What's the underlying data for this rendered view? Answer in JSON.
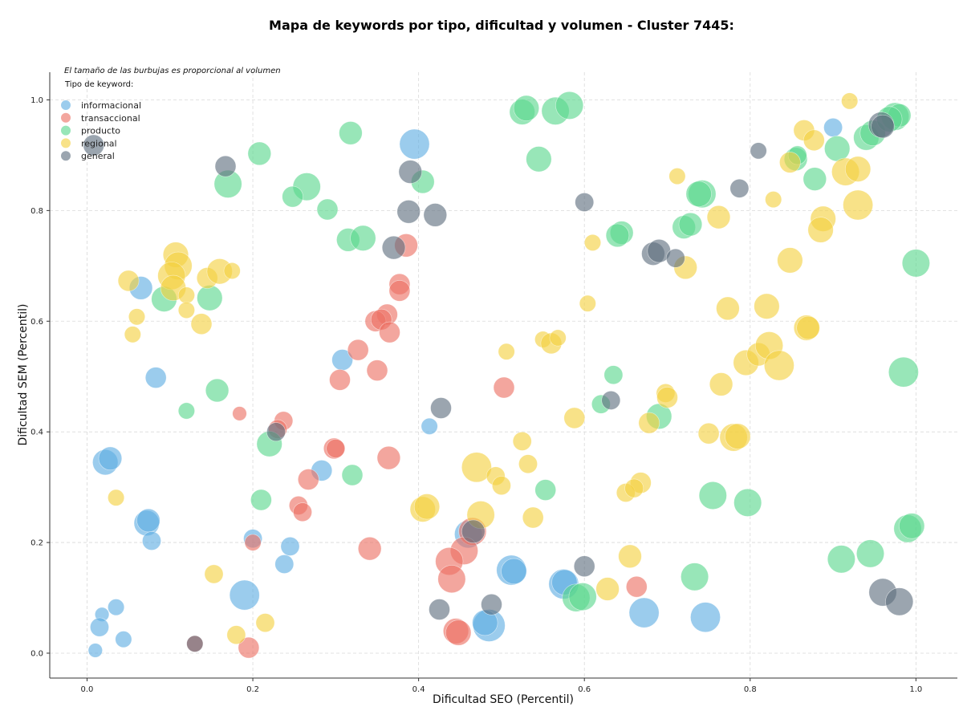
{
  "chart_data": {
    "type": "scatter",
    "title": "Mapa de keywords por tipo, dificultad y volumen - Cluster 7445:",
    "xlabel": "Dificultad SEO (Percentil)",
    "ylabel": "Dificultad SEM (Percentil)",
    "note": "El tamaño de las burbujas es proporcional al volumen",
    "legend_title": "Tipo de keyword:",
    "legend_placement": "top-left",
    "xlim": [
      -0.045,
      1.05
    ],
    "ylim": [
      -0.045,
      1.05
    ],
    "xticks": [
      "0.0",
      "0.2",
      "0.4",
      "0.6",
      "0.8",
      "1.0"
    ],
    "yticks": [
      "0.0",
      "0.2",
      "0.4",
      "0.6",
      "0.8",
      "1.0"
    ],
    "grid": true,
    "series": [
      {
        "name": "informacional",
        "color": "#5dade2",
        "points": [
          [
            0.395,
            0.92,
            0.9
          ],
          [
            0.9,
            0.95,
            0.4
          ],
          [
            0.065,
            0.66,
            0.6
          ],
          [
            0.083,
            0.498,
            0.5
          ],
          [
            0.308,
            0.53,
            0.5
          ],
          [
            0.413,
            0.41,
            0.3
          ],
          [
            0.022,
            0.345,
            0.7
          ],
          [
            0.028,
            0.352,
            0.6
          ],
          [
            0.283,
            0.33,
            0.5
          ],
          [
            0.072,
            0.235,
            0.7
          ],
          [
            0.074,
            0.24,
            0.6
          ],
          [
            0.078,
            0.203,
            0.4
          ],
          [
            0.2,
            0.207,
            0.4
          ],
          [
            0.245,
            0.193,
            0.4
          ],
          [
            0.238,
            0.161,
            0.4
          ],
          [
            0.19,
            0.105,
            0.9
          ],
          [
            0.035,
            0.083,
            0.3
          ],
          [
            0.018,
            0.07,
            0.2
          ],
          [
            0.015,
            0.047,
            0.4
          ],
          [
            0.044,
            0.025,
            0.3
          ],
          [
            0.01,
            0.005,
            0.2
          ],
          [
            0.46,
            0.215,
            0.8
          ],
          [
            0.512,
            0.15,
            0.9
          ],
          [
            0.515,
            0.148,
            0.7
          ],
          [
            0.575,
            0.125,
            0.9
          ],
          [
            0.576,
            0.128,
            0.7
          ],
          [
            0.485,
            0.05,
            1.0
          ],
          [
            0.48,
            0.055,
            0.7
          ],
          [
            0.672,
            0.073,
            0.9
          ],
          [
            0.746,
            0.065,
            0.9
          ]
        ]
      },
      {
        "name": "transaccional",
        "color": "#ec7063",
        "points": [
          [
            0.385,
            0.737,
            0.6
          ],
          [
            0.377,
            0.667,
            0.5
          ],
          [
            0.377,
            0.655,
            0.5
          ],
          [
            0.362,
            0.612,
            0.5
          ],
          [
            0.348,
            0.6,
            0.5
          ],
          [
            0.355,
            0.603,
            0.5
          ],
          [
            0.365,
            0.58,
            0.5
          ],
          [
            0.327,
            0.548,
            0.5
          ],
          [
            0.35,
            0.511,
            0.5
          ],
          [
            0.305,
            0.494,
            0.5
          ],
          [
            0.503,
            0.48,
            0.5
          ],
          [
            0.237,
            0.42,
            0.4
          ],
          [
            0.23,
            0.405,
            0.4
          ],
          [
            0.184,
            0.433,
            0.2
          ],
          [
            0.298,
            0.37,
            0.5
          ],
          [
            0.3,
            0.37,
            0.4
          ],
          [
            0.364,
            0.353,
            0.6
          ],
          [
            0.267,
            0.314,
            0.5
          ],
          [
            0.255,
            0.267,
            0.4
          ],
          [
            0.26,
            0.255,
            0.4
          ],
          [
            0.2,
            0.2,
            0.3
          ],
          [
            0.341,
            0.189,
            0.6
          ],
          [
            0.465,
            0.22,
            0.8
          ],
          [
            0.455,
            0.185,
            0.8
          ],
          [
            0.437,
            0.166,
            0.8
          ],
          [
            0.44,
            0.134,
            0.8
          ],
          [
            0.663,
            0.12,
            0.5
          ],
          [
            0.445,
            0.04,
            0.7
          ],
          [
            0.448,
            0.037,
            0.7
          ],
          [
            0.195,
            0.01,
            0.5
          ],
          [
            0.13,
            0.017,
            0.3
          ]
        ]
      },
      {
        "name": "producto",
        "color": "#58d68d",
        "points": [
          [
            0.318,
            0.94,
            0.6
          ],
          [
            0.525,
            0.978,
            0.7
          ],
          [
            0.53,
            0.985,
            0.7
          ],
          [
            0.565,
            0.98,
            0.8
          ],
          [
            0.582,
            0.99,
            0.8
          ],
          [
            0.545,
            0.893,
            0.7
          ],
          [
            0.208,
            0.903,
            0.6
          ],
          [
            0.17,
            0.848,
            0.8
          ],
          [
            0.265,
            0.843,
            0.8
          ],
          [
            0.248,
            0.825,
            0.5
          ],
          [
            0.405,
            0.852,
            0.6
          ],
          [
            0.29,
            0.802,
            0.5
          ],
          [
            0.315,
            0.747,
            0.6
          ],
          [
            0.333,
            0.75,
            0.7
          ],
          [
            0.645,
            0.76,
            0.6
          ],
          [
            0.64,
            0.755,
            0.6
          ],
          [
            0.72,
            0.77,
            0.6
          ],
          [
            0.728,
            0.775,
            0.6
          ],
          [
            0.742,
            0.83,
            0.8
          ],
          [
            0.738,
            0.83,
            0.7
          ],
          [
            0.878,
            0.857,
            0.6
          ],
          [
            0.855,
            0.893,
            0.6
          ],
          [
            0.857,
            0.9,
            0.4
          ],
          [
            0.905,
            0.912,
            0.7
          ],
          [
            0.94,
            0.932,
            0.7
          ],
          [
            0.948,
            0.94,
            0.7
          ],
          [
            0.975,
            0.97,
            0.8
          ],
          [
            0.98,
            0.972,
            0.6
          ],
          [
            0.968,
            0.965,
            0.7
          ],
          [
            1.0,
            0.705,
            0.8
          ],
          [
            0.093,
            0.64,
            0.7
          ],
          [
            0.148,
            0.642,
            0.7
          ],
          [
            0.157,
            0.475,
            0.6
          ],
          [
            0.12,
            0.438,
            0.3
          ],
          [
            0.22,
            0.378,
            0.7
          ],
          [
            0.635,
            0.503,
            0.4
          ],
          [
            0.62,
            0.45,
            0.4
          ],
          [
            0.985,
            0.508,
            0.9
          ],
          [
            0.69,
            0.428,
            0.7
          ],
          [
            0.32,
            0.322,
            0.5
          ],
          [
            0.21,
            0.277,
            0.5
          ],
          [
            0.553,
            0.295,
            0.5
          ],
          [
            0.755,
            0.285,
            0.8
          ],
          [
            0.797,
            0.272,
            0.8
          ],
          [
            0.91,
            0.17,
            0.8
          ],
          [
            0.945,
            0.18,
            0.8
          ],
          [
            0.99,
            0.225,
            0.8
          ],
          [
            0.995,
            0.23,
            0.7
          ],
          [
            0.733,
            0.138,
            0.8
          ],
          [
            0.59,
            0.1,
            0.8
          ],
          [
            0.598,
            0.102,
            0.8
          ]
        ]
      },
      {
        "name": "regional",
        "color": "#f4d03f",
        "points": [
          [
            0.92,
            0.998,
            0.3
          ],
          [
            0.865,
            0.945,
            0.5
          ],
          [
            0.877,
            0.927,
            0.5
          ],
          [
            0.848,
            0.887,
            0.5
          ],
          [
            0.915,
            0.87,
            0.8
          ],
          [
            0.93,
            0.875,
            0.7
          ],
          [
            0.712,
            0.862,
            0.3
          ],
          [
            0.828,
            0.82,
            0.3
          ],
          [
            0.762,
            0.788,
            0.6
          ],
          [
            0.93,
            0.81,
            0.9
          ],
          [
            0.888,
            0.785,
            0.7
          ],
          [
            0.885,
            0.765,
            0.7
          ],
          [
            0.61,
            0.742,
            0.3
          ],
          [
            0.848,
            0.71,
            0.7
          ],
          [
            0.722,
            0.697,
            0.6
          ],
          [
            0.604,
            0.632,
            0.3
          ],
          [
            0.773,
            0.623,
            0.6
          ],
          [
            0.82,
            0.627,
            0.7
          ],
          [
            0.868,
            0.588,
            0.7
          ],
          [
            0.87,
            0.588,
            0.6
          ],
          [
            0.795,
            0.525,
            0.7
          ],
          [
            0.81,
            0.54,
            0.6
          ],
          [
            0.823,
            0.556,
            0.8
          ],
          [
            0.835,
            0.52,
            0.9
          ],
          [
            0.506,
            0.545,
            0.3
          ],
          [
            0.55,
            0.567,
            0.3
          ],
          [
            0.56,
            0.56,
            0.5
          ],
          [
            0.568,
            0.57,
            0.3
          ],
          [
            0.765,
            0.486,
            0.6
          ],
          [
            0.698,
            0.47,
            0.4
          ],
          [
            0.7,
            0.462,
            0.5
          ],
          [
            0.588,
            0.425,
            0.5
          ],
          [
            0.678,
            0.416,
            0.5
          ],
          [
            0.75,
            0.397,
            0.5
          ],
          [
            0.78,
            0.39,
            0.8
          ],
          [
            0.785,
            0.392,
            0.7
          ],
          [
            0.525,
            0.383,
            0.4
          ],
          [
            0.47,
            0.336,
            0.9
          ],
          [
            0.532,
            0.342,
            0.4
          ],
          [
            0.493,
            0.32,
            0.4
          ],
          [
            0.5,
            0.303,
            0.4
          ],
          [
            0.668,
            0.308,
            0.5
          ],
          [
            0.65,
            0.29,
            0.4
          ],
          [
            0.66,
            0.298,
            0.4
          ],
          [
            0.405,
            0.26,
            0.7
          ],
          [
            0.41,
            0.265,
            0.7
          ],
          [
            0.475,
            0.25,
            0.8
          ],
          [
            0.538,
            0.245,
            0.5
          ],
          [
            0.655,
            0.175,
            0.6
          ],
          [
            0.628,
            0.116,
            0.6
          ],
          [
            0.107,
            0.72,
            0.7
          ],
          [
            0.11,
            0.7,
            0.8
          ],
          [
            0.102,
            0.682,
            0.8
          ],
          [
            0.104,
            0.66,
            0.7
          ],
          [
            0.05,
            0.673,
            0.5
          ],
          [
            0.145,
            0.678,
            0.5
          ],
          [
            0.16,
            0.69,
            0.7
          ],
          [
            0.175,
            0.691,
            0.3
          ],
          [
            0.12,
            0.647,
            0.3
          ],
          [
            0.06,
            0.608,
            0.3
          ],
          [
            0.12,
            0.62,
            0.3
          ],
          [
            0.138,
            0.595,
            0.5
          ],
          [
            0.055,
            0.576,
            0.3
          ],
          [
            0.035,
            0.281,
            0.3
          ],
          [
            0.153,
            0.143,
            0.4
          ],
          [
            0.215,
            0.055,
            0.4
          ],
          [
            0.18,
            0.033,
            0.4
          ]
        ]
      },
      {
        "name": "general",
        "color": "#5d6d7e",
        "points": [
          [
            0.008,
            0.918,
            0.5
          ],
          [
            0.167,
            0.88,
            0.5
          ],
          [
            0.39,
            0.87,
            0.6
          ],
          [
            0.81,
            0.908,
            0.3
          ],
          [
            0.958,
            0.955,
            0.7
          ],
          [
            0.96,
            0.952,
            0.6
          ],
          [
            0.6,
            0.815,
            0.4
          ],
          [
            0.388,
            0.798,
            0.6
          ],
          [
            0.42,
            0.792,
            0.6
          ],
          [
            0.787,
            0.84,
            0.4
          ],
          [
            0.37,
            0.733,
            0.6
          ],
          [
            0.683,
            0.722,
            0.6
          ],
          [
            0.69,
            0.727,
            0.6
          ],
          [
            0.71,
            0.714,
            0.4
          ],
          [
            0.427,
            0.443,
            0.5
          ],
          [
            0.632,
            0.457,
            0.4
          ],
          [
            0.228,
            0.4,
            0.4
          ],
          [
            0.466,
            0.22,
            0.6
          ],
          [
            0.6,
            0.157,
            0.5
          ],
          [
            0.425,
            0.079,
            0.5
          ],
          [
            0.488,
            0.088,
            0.5
          ],
          [
            0.96,
            0.11,
            0.8
          ],
          [
            0.98,
            0.093,
            0.8
          ],
          [
            0.13,
            0.017,
            0.3
          ]
        ]
      }
    ]
  }
}
